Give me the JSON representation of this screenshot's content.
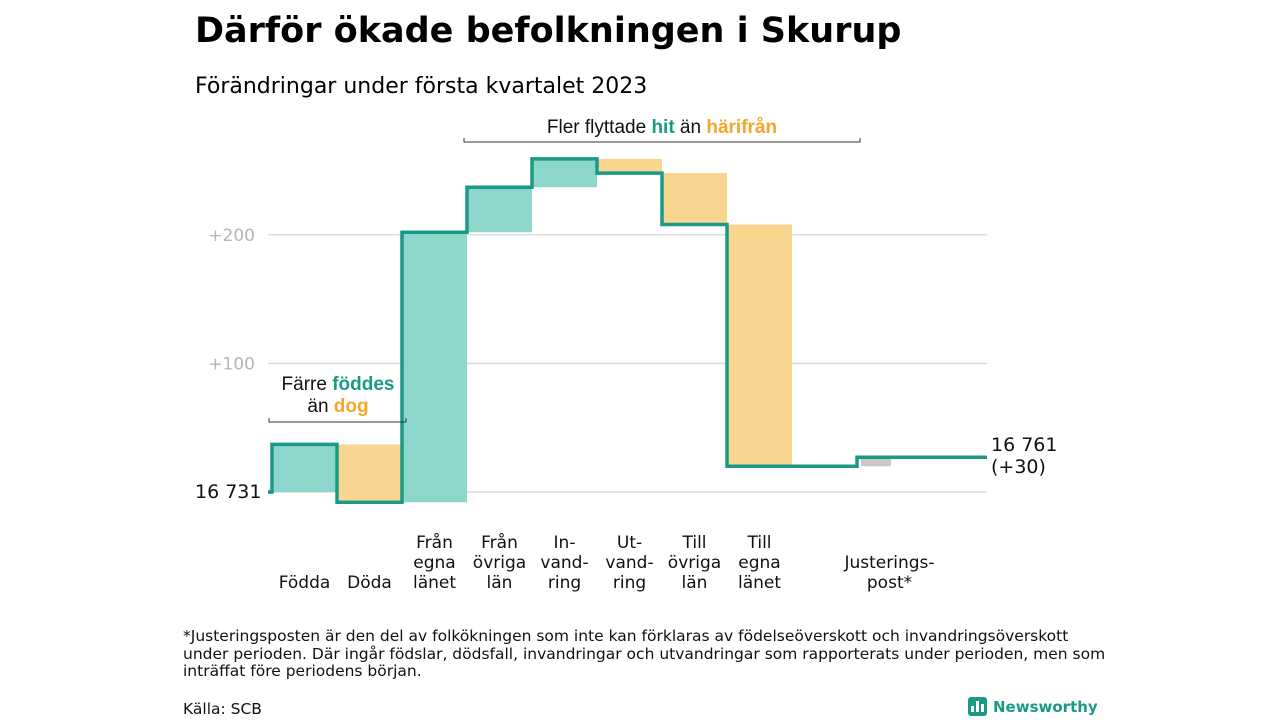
{
  "chart_data": {
    "type": "waterfall",
    "title": "Därför ökade befolkningen i Skurup",
    "subtitle": "Förändringar under första kvartalet 2023",
    "start_label": "16 731",
    "end_label": [
      "16 761",
      "(+30)"
    ],
    "start_value": 16731,
    "end_value": 16761,
    "total_change": 30,
    "y_ticks": [
      {
        "value": 100,
        "label": "+100"
      },
      {
        "value": 200,
        "label": "+200"
      }
    ],
    "ylim": [
      -12,
      255
    ],
    "steps": [
      {
        "category": [
          "Födda"
        ],
        "change": 37,
        "color": "#8dd6cc"
      },
      {
        "category": [
          "Döda"
        ],
        "change": -45,
        "color": "#f9d68f"
      },
      {
        "category": [
          "Från",
          "egna",
          "länet"
        ],
        "change": 210,
        "color": "#8dd6cc"
      },
      {
        "category": [
          "Från",
          "övriga",
          "län"
        ],
        "change": 35,
        "color": "#8dd6cc"
      },
      {
        "category": [
          "In-",
          "vand-",
          "ring"
        ],
        "change": 22,
        "color": "#8dd6cc"
      },
      {
        "category": [
          "Ut-",
          "vand-",
          "ring"
        ],
        "change": -11,
        "color": "#f9d68f"
      },
      {
        "category": [
          "Till",
          "övriga",
          "län"
        ],
        "change": -40,
        "color": "#f9d68f"
      },
      {
        "category": [
          "Till",
          "egna",
          "länet"
        ],
        "change": -188,
        "color": "#f9d68f"
      },
      {
        "category": [
          "Justerings-",
          "post*"
        ],
        "change": 7,
        "color": "#c9c9c9",
        "gap_before": true
      }
    ],
    "annotations": {
      "births": {
        "prefix": "Färre ",
        "green": "föddes",
        "line2_prefix": "än ",
        "orange": "dog"
      },
      "moves": {
        "prefix": "Fler flyttade ",
        "green": "hit",
        "mid": " än ",
        "orange": "härifrån"
      }
    },
    "colors": {
      "line": "#1a9a86",
      "green_text": "#1a9a86",
      "orange_text": "#f5a52a"
    }
  },
  "footnote": "*Justeringsposten är den del av folkökningen som inte kan förklaras av födelseöverskott och invandringsöverskott under perioden. Där ingår födslar, dödsfall, invandringar och utvandringar som rapporterats under perioden, men som inträffat före periodens början.",
  "source": "Källa: SCB",
  "brand": "Newsworthy"
}
